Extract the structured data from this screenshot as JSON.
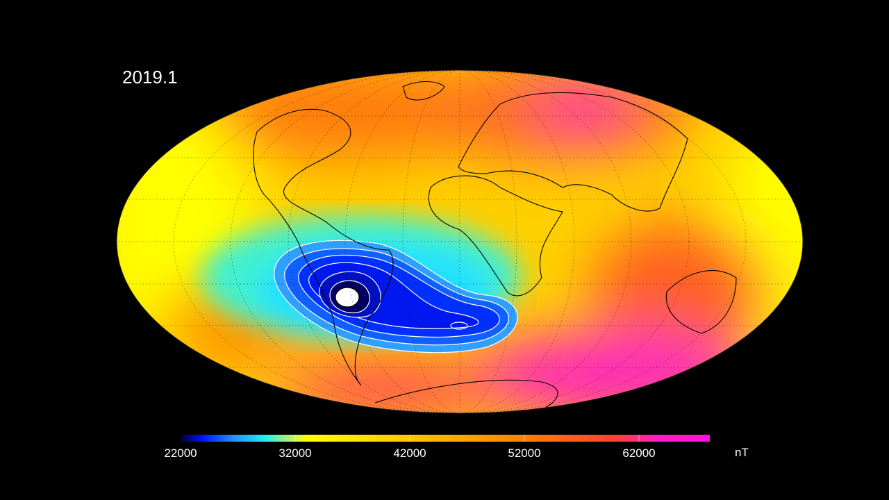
{
  "epoch_label": "2019.1",
  "map": {
    "projection": "Mollweide",
    "quantity": "magnetic field strength",
    "feature": "South Atlantic Anomaly minimum",
    "colors": {
      "low": "#000040",
      "blue": "#0020ff",
      "cyan": "#20f0f0",
      "yellow": "#ffff00",
      "orange": "#ff9000",
      "red": "#ff4020",
      "magenta": "#ff10e0"
    }
  },
  "colorbar": {
    "min": 22000,
    "max": 68200,
    "unit": "nT",
    "ticks": [
      "22000",
      "32000",
      "42000",
      "52000",
      "62000"
    ]
  }
}
